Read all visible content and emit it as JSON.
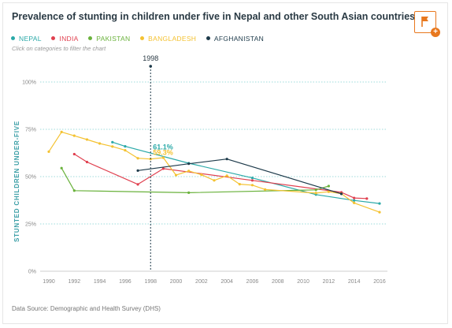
{
  "header": {
    "title": "Prevalence of stunting in children under five in Nepal and other South Asian countries",
    "hint": "Click on categories to filter the chart",
    "source": "Data Source: Demographic and Health Survey (DHS)"
  },
  "colors": {
    "nepal": "#2aa9a8",
    "india": "#e0404f",
    "pakistan": "#6ab23c",
    "bangladesh": "#f4c231",
    "afghanistan": "#1d3a4a",
    "accent": "#e8781e"
  },
  "icons": {
    "flag": "flag-icon",
    "add": "plus-icon"
  },
  "chart_data": {
    "type": "line",
    "ylabel": "STUNTED CHILDREN UNDER-FIVE",
    "xlim": [
      1990,
      2016
    ],
    "ylim": [
      0,
      100
    ],
    "x_ticks": [
      "1990",
      "1992",
      "1994",
      "1996",
      "1998",
      "2000",
      "2002",
      "2004",
      "2006",
      "2008",
      "2010",
      "2012",
      "2014",
      "2016"
    ],
    "y_ticks": [
      "0%",
      "25%",
      "50%",
      "75%",
      "100%"
    ],
    "y_tick_values": [
      0,
      25,
      50,
      75,
      100
    ],
    "marker": {
      "x": 1998,
      "label": "1998"
    },
    "annotations": [
      {
        "series": "Nepal",
        "x": 1998,
        "y": 61.1,
        "label": "61.1%"
      },
      {
        "series": "Bangladesh",
        "x": 1998,
        "y": 59.3,
        "label": "59.3%"
      }
    ],
    "series": [
      {
        "name": "NEPAL",
        "color": "#2aa9a8",
        "points": [
          [
            1995,
            68.2
          ],
          [
            1996,
            66.0
          ],
          [
            2001,
            57.1
          ],
          [
            2006,
            49.3
          ],
          [
            2011,
            40.5
          ],
          [
            2014,
            37.4
          ],
          [
            2016,
            35.8
          ]
        ]
      },
      {
        "name": "INDIA",
        "color": "#e0404f",
        "points": [
          [
            1992,
            61.9
          ],
          [
            1993,
            57.7
          ],
          [
            1997,
            45.9
          ],
          [
            1999,
            54.2
          ],
          [
            2006,
            48.0
          ],
          [
            2013,
            41.7
          ],
          [
            2014,
            38.7
          ],
          [
            2015,
            38.4
          ]
        ]
      },
      {
        "name": "PAKISTAN",
        "color": "#6ab23c",
        "points": [
          [
            1991,
            54.5
          ],
          [
            1992,
            42.6
          ],
          [
            2001,
            41.5
          ],
          [
            2011,
            43.0
          ],
          [
            2012,
            45.0
          ]
        ]
      },
      {
        "name": "BANGLADESH",
        "color": "#f4c231",
        "points": [
          [
            1990,
            63.2
          ],
          [
            1991,
            73.6
          ],
          [
            1992,
            71.6
          ],
          [
            1993,
            69.6
          ],
          [
            1994,
            67.5
          ],
          [
            1995,
            65.9
          ],
          [
            1996,
            63.9
          ],
          [
            1997,
            59.7
          ],
          [
            1998,
            59.3
          ],
          [
            1999,
            60.0
          ],
          [
            2000,
            50.8
          ],
          [
            2001,
            53.0
          ],
          [
            2002,
            51.0
          ],
          [
            2003,
            48.0
          ],
          [
            2004,
            50.5
          ],
          [
            2005,
            46.0
          ],
          [
            2006,
            45.5
          ],
          [
            2007,
            43.2
          ],
          [
            2011,
            41.3
          ],
          [
            2012,
            42.0
          ],
          [
            2013,
            41.0
          ],
          [
            2014,
            36.1
          ],
          [
            2016,
            31.2
          ]
        ]
      },
      {
        "name": "AFGHANISTAN",
        "color": "#1d3a4a",
        "points": [
          [
            1997,
            53.2
          ],
          [
            2001,
            56.8
          ],
          [
            2004,
            59.3
          ],
          [
            2013,
            40.9
          ]
        ]
      }
    ]
  }
}
